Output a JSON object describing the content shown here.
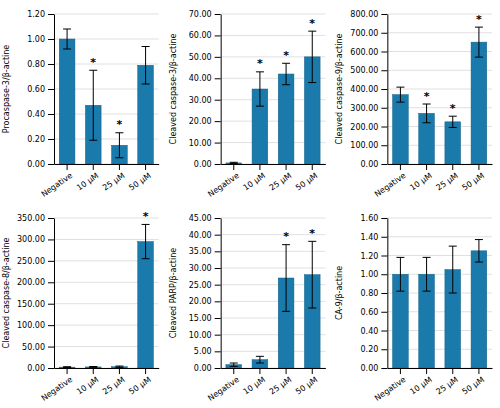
{
  "chart_data": [
    {
      "type": "bar",
      "ylabel": "Procaspase-3/β-actine",
      "categories": [
        "Negative",
        "10 μM",
        "25 μM",
        "50 μM"
      ],
      "values": [
        1.0,
        0.47,
        0.15,
        0.79
      ],
      "errors": [
        0.08,
        0.28,
        0.1,
        0.15
      ],
      "annotations": [
        null,
        "*",
        "*",
        null
      ],
      "color": "#1a7aab",
      "grid": true,
      "ylim": [
        0,
        1.2
      ],
      "yticks": [
        {
          "value": 0.0,
          "label": "0.00"
        },
        {
          "value": 0.2,
          "label": "0.20"
        },
        {
          "value": 0.4,
          "label": "0.40"
        },
        {
          "value": 0.6,
          "label": "0.60"
        },
        {
          "value": 0.8,
          "label": "0.80"
        },
        {
          "value": 1.0,
          "label": "1.00"
        },
        {
          "value": 1.2,
          "label": "1.20"
        }
      ]
    },
    {
      "type": "bar",
      "ylabel": "Cleaved caspase-3/β-actine",
      "categories": [
        "Negative",
        "10 μM",
        "25 μM",
        "50 μM"
      ],
      "values": [
        0.5,
        35.0,
        42.0,
        50.0
      ],
      "errors": [
        0.3,
        8.0,
        5.0,
        12.0
      ],
      "annotations": [
        null,
        "*",
        "*",
        "*"
      ],
      "color": "#1a7aab",
      "grid": true,
      "ylim": [
        0,
        70.0
      ],
      "yticks": [
        {
          "value": 0,
          "label": "0.00"
        },
        {
          "value": 10,
          "label": "10.00"
        },
        {
          "value": 20,
          "label": "20.00"
        },
        {
          "value": 30,
          "label": "30.00"
        },
        {
          "value": 40,
          "label": "40.00"
        },
        {
          "value": 50,
          "label": "50.00"
        },
        {
          "value": 60,
          "label": "60.00"
        },
        {
          "value": 70,
          "label": "70.00"
        }
      ]
    },
    {
      "type": "bar",
      "ylabel": "Cleaved caspase-9/β-actine",
      "categories": [
        "Negative",
        "10 μM",
        "25 μM",
        "50 μM"
      ],
      "values": [
        370,
        270,
        225,
        650
      ],
      "errors": [
        40,
        50,
        30,
        80
      ],
      "annotations": [
        null,
        "*",
        "*",
        "*"
      ],
      "color": "#1a7aab",
      "grid": true,
      "ylim": [
        0,
        800.0
      ],
      "yticks": [
        {
          "value": 0,
          "label": "0.00"
        },
        {
          "value": 100,
          "label": "100.00"
        },
        {
          "value": 200,
          "label": "200.00"
        },
        {
          "value": 300,
          "label": "300.00"
        },
        {
          "value": 400,
          "label": "400.00"
        },
        {
          "value": 500,
          "label": "500.00"
        },
        {
          "value": 600,
          "label": "600.00"
        },
        {
          "value": 700,
          "label": "700.00"
        },
        {
          "value": 800,
          "label": "800.00"
        }
      ]
    },
    {
      "type": "bar",
      "ylabel": "Cleaved caspase-8/β-actine",
      "categories": [
        "Negative",
        "10 μM",
        "25 μM",
        "50 μM"
      ],
      "values": [
        2.0,
        2.5,
        3.0,
        295.0
      ],
      "errors": [
        1.0,
        1.0,
        1.5,
        40.0
      ],
      "annotations": [
        null,
        null,
        null,
        "*"
      ],
      "color": "#1a7aab",
      "grid": true,
      "ylim": [
        0,
        350.0
      ],
      "yticks": [
        {
          "value": 0,
          "label": "0.00"
        },
        {
          "value": 50,
          "label": "50.00"
        },
        {
          "value": 100,
          "label": "100.00"
        },
        {
          "value": 150,
          "label": "150.00"
        },
        {
          "value": 200,
          "label": "200.00"
        },
        {
          "value": 250,
          "label": "250.00"
        },
        {
          "value": 300,
          "label": "300.00"
        },
        {
          "value": 350,
          "label": "350.00"
        }
      ]
    },
    {
      "type": "bar",
      "ylabel": "Cleaved PARP/β-actine",
      "categories": [
        "Negative",
        "10 μM",
        "25 μM",
        "50 μM"
      ],
      "values": [
        1.0,
        2.5,
        27.0,
        28.0
      ],
      "errors": [
        0.5,
        1.0,
        10.0,
        10.0
      ],
      "annotations": [
        null,
        null,
        "*",
        "*"
      ],
      "color": "#1a7aab",
      "grid": true,
      "ylim": [
        0,
        45.0
      ],
      "yticks": [
        {
          "value": 0,
          "label": "0.00"
        },
        {
          "value": 5,
          "label": "5.00"
        },
        {
          "value": 10,
          "label": "10.00"
        },
        {
          "value": 15,
          "label": "15.00"
        },
        {
          "value": 20,
          "label": "20.00"
        },
        {
          "value": 25,
          "label": "25.00"
        },
        {
          "value": 30,
          "label": "30.00"
        },
        {
          "value": 35,
          "label": "35.00"
        },
        {
          "value": 40,
          "label": "40.00"
        },
        {
          "value": 45,
          "label": "45.00"
        }
      ]
    },
    {
      "type": "bar",
      "ylabel": "CA-9/β-actine",
      "categories": [
        "Negative",
        "10 μM",
        "25 μM",
        "50 μM"
      ],
      "values": [
        1.0,
        1.0,
        1.05,
        1.25
      ],
      "errors": [
        0.18,
        0.18,
        0.25,
        0.12
      ],
      "annotations": [
        null,
        null,
        null,
        null
      ],
      "color": "#1a7aab",
      "grid": true,
      "ylim": [
        0,
        1.6
      ],
      "yticks": [
        {
          "value": 0.0,
          "label": "0.00"
        },
        {
          "value": 0.2,
          "label": "0.20"
        },
        {
          "value": 0.4,
          "label": "0.40"
        },
        {
          "value": 0.6,
          "label": "0.60"
        },
        {
          "value": 0.8,
          "label": "0.80"
        },
        {
          "value": 1.0,
          "label": "1.00"
        },
        {
          "value": 1.2,
          "label": "1.20"
        },
        {
          "value": 1.4,
          "label": "1.40"
        },
        {
          "value": 1.6,
          "label": "1.60"
        }
      ]
    }
  ]
}
